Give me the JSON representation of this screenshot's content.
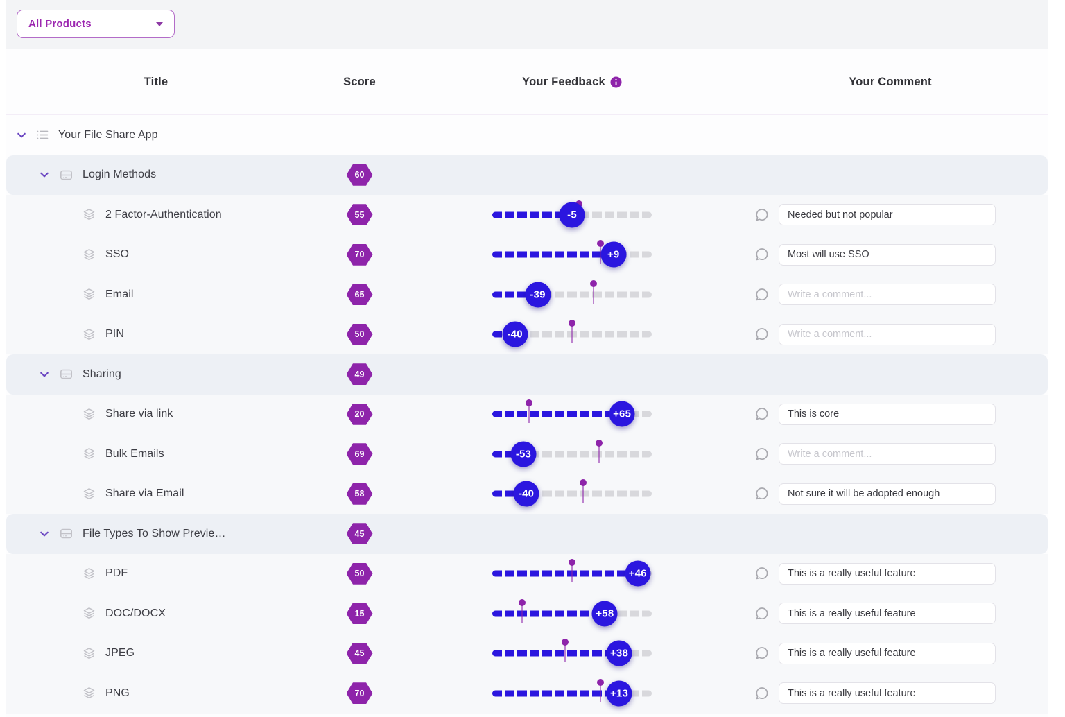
{
  "toolbar": {
    "product_filter": {
      "value": "All Products"
    }
  },
  "table": {
    "columns": {
      "title": "Title",
      "score": "Score",
      "feedback": "Your Feedback",
      "comment": "Your Comment"
    },
    "comment_placeholder": "Write a comment...",
    "feedback_scale": {
      "min": 0,
      "max": 100
    },
    "rows": [
      {
        "type": "root",
        "title": "Your File Share App",
        "icon": "list-icon",
        "expanded": true
      },
      {
        "type": "group",
        "title": "Login Methods",
        "icon": "archive-icon",
        "expanded": true,
        "score": 60
      },
      {
        "type": "feature",
        "title": "2 Factor-Authentication",
        "icon": "layers-icon",
        "score": 55,
        "feedback": -5,
        "feedback_label": "-5",
        "comment": "Needed but not popular"
      },
      {
        "type": "feature",
        "title": "SSO",
        "icon": "layers-icon",
        "score": 70,
        "feedback": 9,
        "feedback_label": "+9",
        "comment": "Most will use SSO"
      },
      {
        "type": "feature",
        "title": "Email",
        "icon": "layers-icon",
        "score": 65,
        "feedback": -39,
        "feedback_label": "-39",
        "comment": ""
      },
      {
        "type": "feature",
        "title": "PIN",
        "icon": "layers-icon",
        "score": 50,
        "feedback": -40,
        "feedback_label": "-40",
        "comment": ""
      },
      {
        "type": "group",
        "title": "Sharing",
        "icon": "archive-icon",
        "expanded": true,
        "score": 49
      },
      {
        "type": "feature",
        "title": "Share via link",
        "icon": "layers-icon",
        "score": 20,
        "feedback": 65,
        "feedback_label": "+65",
        "comment": "This is core"
      },
      {
        "type": "feature",
        "title": "Bulk Emails",
        "icon": "layers-icon",
        "score": 69,
        "feedback": -53,
        "feedback_label": "-53",
        "comment": ""
      },
      {
        "type": "feature",
        "title": "Share via Email",
        "icon": "layers-icon",
        "score": 58,
        "feedback": -40,
        "feedback_label": "-40",
        "comment": "Not sure it will be adopted enough"
      },
      {
        "type": "group",
        "title": "File Types To Show Previe…",
        "icon": "archive-icon",
        "expanded": true,
        "score": 45
      },
      {
        "type": "feature",
        "title": "PDF",
        "icon": "layers-icon",
        "score": 50,
        "feedback": 46,
        "feedback_label": "+46",
        "comment": "This is a really useful feature"
      },
      {
        "type": "feature",
        "title": "DOC/DOCX",
        "icon": "layers-icon",
        "score": 15,
        "feedback": 58,
        "feedback_label": "+58",
        "comment": "This is a really useful feature"
      },
      {
        "type": "feature",
        "title": "JPEG",
        "icon": "layers-icon",
        "score": 45,
        "feedback": 38,
        "feedback_label": "+38",
        "comment": "This is a really useful feature"
      },
      {
        "type": "feature",
        "title": "PNG",
        "icon": "layers-icon",
        "score": 70,
        "feedback": 13,
        "feedback_label": "+13",
        "comment": "This is a really useful feature"
      }
    ]
  },
  "colors": {
    "accent_purple": "#8e24aa",
    "chevron_purple": "#6b46c2",
    "slider_blue": "#2b16df",
    "track_gray": "#d8d8dc",
    "group_row_bg": "#edf0f5",
    "feature_row_bg": "#f7f8fa",
    "toolbar_bg": "#f3f4f6"
  }
}
